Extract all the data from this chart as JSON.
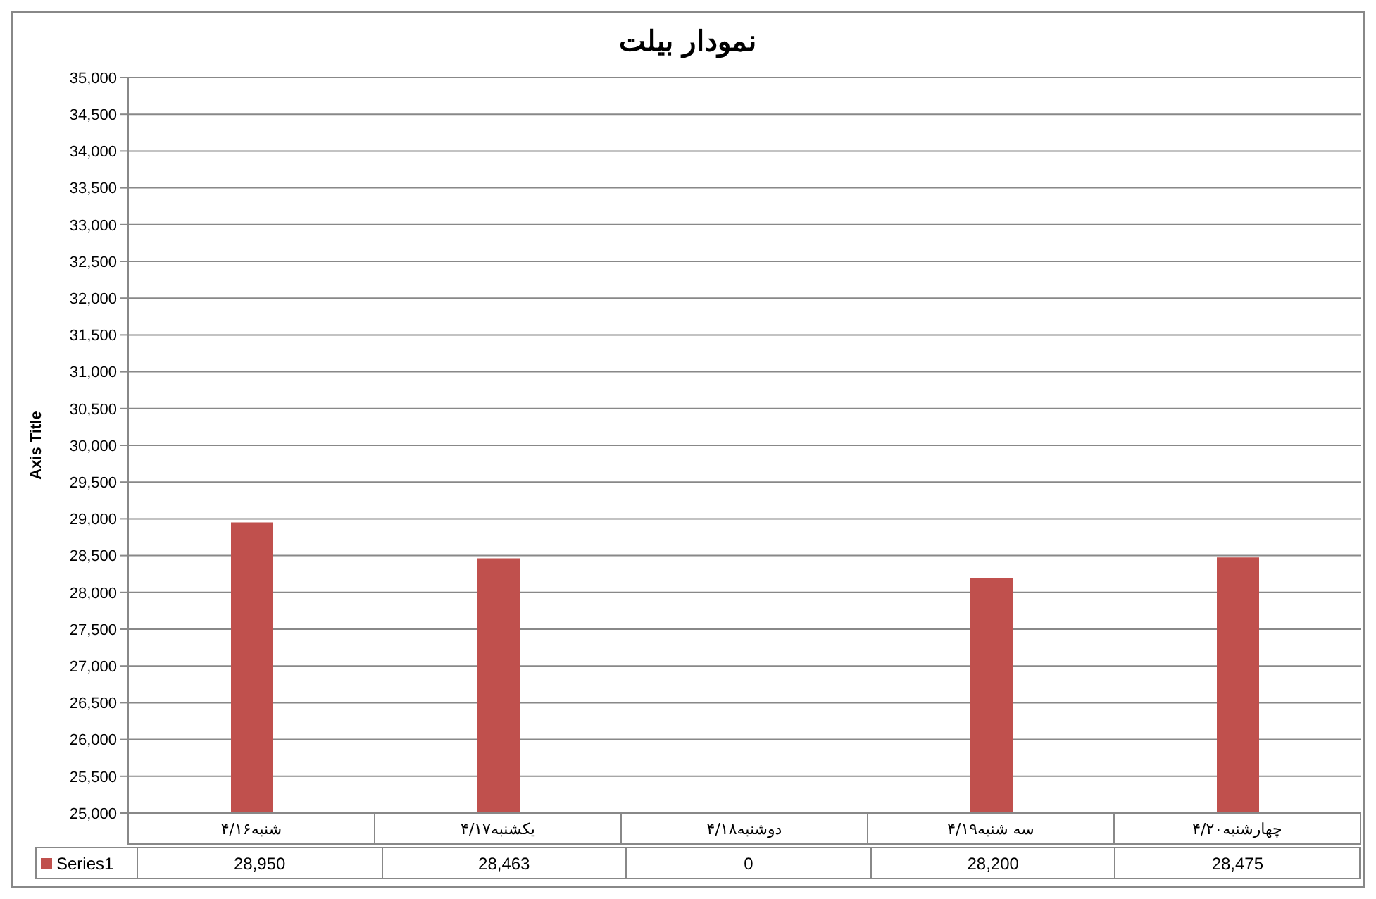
{
  "chart_data": {
    "type": "bar",
    "title": "نمودار بیلت",
    "ylabel": "Axis Title",
    "categories": [
      "شنبه۴/۱۶",
      "یکشنبه۴/۱۷",
      "دوشنبه۴/۱۸",
      "سه شنبه۴/۱۹",
      "چهارشنبه۴/۲۰"
    ],
    "series": [
      {
        "name": "Series1",
        "color": "#c0504d",
        "values": [
          28950,
          28463,
          null,
          28200,
          28475
        ],
        "value_labels": [
          "28,950",
          "28,463",
          "0",
          "28,200",
          "28,475"
        ]
      }
    ],
    "ylim": [
      25000,
      35000
    ],
    "yticks": [
      {
        "value": 25000,
        "label": "25,000"
      },
      {
        "value": 25500,
        "label": "25,500"
      },
      {
        "value": 26000,
        "label": "26,000"
      },
      {
        "value": 26500,
        "label": "26,500"
      },
      {
        "value": 27000,
        "label": "27,000"
      },
      {
        "value": 27500,
        "label": "27,500"
      },
      {
        "value": 28000,
        "label": "28,000"
      },
      {
        "value": 28500,
        "label": "28,500"
      },
      {
        "value": 29000,
        "label": "29,000"
      },
      {
        "value": 29500,
        "label": "29,500"
      },
      {
        "value": 30000,
        "label": "30,000"
      },
      {
        "value": 30500,
        "label": "30,500"
      },
      {
        "value": 31000,
        "label": "31,000"
      },
      {
        "value": 31500,
        "label": "31,500"
      },
      {
        "value": 32000,
        "label": "32,000"
      },
      {
        "value": 32500,
        "label": "32,500"
      },
      {
        "value": 33000,
        "label": "33,000"
      },
      {
        "value": 33500,
        "label": "33,500"
      },
      {
        "value": 34000,
        "label": "34,000"
      },
      {
        "value": 34500,
        "label": "34,500"
      },
      {
        "value": 35000,
        "label": "35,000"
      }
    ],
    "grid": "y"
  }
}
